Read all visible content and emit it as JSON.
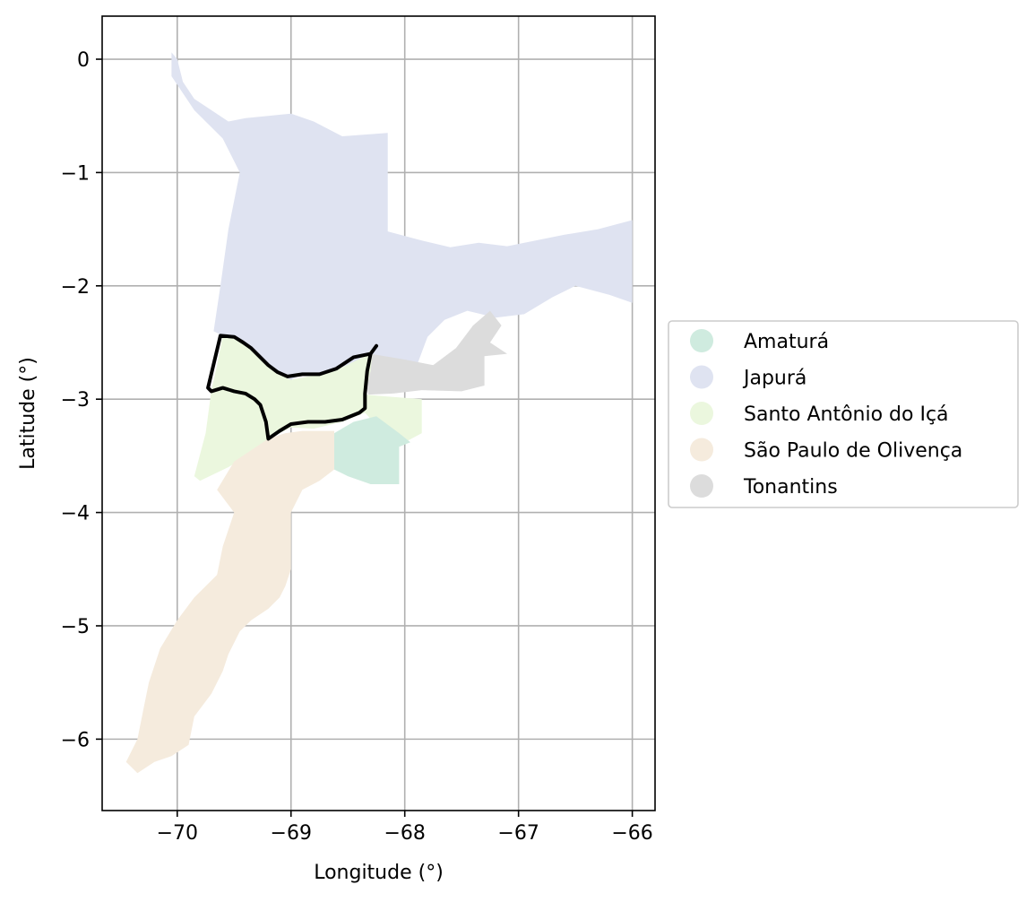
{
  "chart_data": {
    "type": "choropleth-map",
    "xlabel": "Longitude (°)",
    "ylabel": "Latitude (°)",
    "xlim": [
      -70.66,
      -65.8
    ],
    "ylim": [
      -6.63,
      0.38
    ],
    "x_ticks": [
      -70,
      -69,
      -68,
      -67,
      -66
    ],
    "y_ticks": [
      0,
      -1,
      -2,
      -3,
      -4,
      -5,
      -6
    ],
    "x_tick_labels": [
      "−70",
      "−69",
      "−68",
      "−67",
      "−66"
    ],
    "y_tick_labels": [
      "0",
      "−1",
      "−2",
      "−3",
      "−4",
      "−5",
      "−6"
    ],
    "grid": true,
    "legend_position": "center-right outside",
    "highlighted_region": "Santo Antônio do Içá",
    "regions": [
      {
        "name": "Japurá",
        "color": "#dfe3f1",
        "polygon": [
          [
            -70.05,
            0.06
          ],
          [
            -70.0,
            0.0
          ],
          [
            -69.95,
            -0.2
          ],
          [
            -69.85,
            -0.35
          ],
          [
            -69.7,
            -0.45
          ],
          [
            -69.55,
            -0.55
          ],
          [
            -69.4,
            -0.52
          ],
          [
            -69.2,
            -0.5
          ],
          [
            -69.0,
            -0.48
          ],
          [
            -68.8,
            -0.55
          ],
          [
            -68.55,
            -0.68
          ],
          [
            -68.15,
            -0.65
          ],
          [
            -68.15,
            -1.52
          ],
          [
            -67.85,
            -1.6
          ],
          [
            -67.6,
            -1.66
          ],
          [
            -67.35,
            -1.62
          ],
          [
            -67.1,
            -1.65
          ],
          [
            -66.85,
            -1.6
          ],
          [
            -66.6,
            -1.55
          ],
          [
            -66.3,
            -1.5
          ],
          [
            -66.0,
            -1.42
          ],
          [
            -66.0,
            -2.15
          ],
          [
            -66.2,
            -2.08
          ],
          [
            -66.5,
            -2.0
          ],
          [
            -66.7,
            -2.1
          ],
          [
            -66.95,
            -2.25
          ],
          [
            -67.2,
            -2.28
          ],
          [
            -67.45,
            -2.22
          ],
          [
            -67.65,
            -2.3
          ],
          [
            -67.8,
            -2.45
          ],
          [
            -67.9,
            -2.72
          ],
          [
            -68.12,
            -2.72
          ],
          [
            -68.3,
            -2.62
          ],
          [
            -68.42,
            -2.68
          ],
          [
            -68.58,
            -2.72
          ],
          [
            -68.75,
            -2.78
          ],
          [
            -68.9,
            -2.78
          ],
          [
            -69.0,
            -2.83
          ],
          [
            -69.1,
            -2.78
          ],
          [
            -69.2,
            -2.72
          ],
          [
            -69.3,
            -2.58
          ],
          [
            -69.45,
            -2.47
          ],
          [
            -69.6,
            -2.44
          ],
          [
            -69.68,
            -2.4
          ],
          [
            -69.62,
            -2.0
          ],
          [
            -69.55,
            -1.5
          ],
          [
            -69.45,
            -1.0
          ],
          [
            -69.6,
            -0.7
          ],
          [
            -69.85,
            -0.45
          ],
          [
            -70.05,
            -0.15
          ]
        ]
      },
      {
        "name": "Tonantins",
        "color": "#dcdcdc",
        "polygon": [
          [
            -68.3,
            -2.6
          ],
          [
            -68.0,
            -2.65
          ],
          [
            -67.75,
            -2.7
          ],
          [
            -67.55,
            -2.55
          ],
          [
            -67.4,
            -2.35
          ],
          [
            -67.25,
            -2.22
          ],
          [
            -67.15,
            -2.35
          ],
          [
            -67.25,
            -2.5
          ],
          [
            -67.1,
            -2.6
          ],
          [
            -67.3,
            -2.62
          ],
          [
            -67.3,
            -2.88
          ],
          [
            -67.5,
            -2.93
          ],
          [
            -67.85,
            -2.92
          ],
          [
            -68.1,
            -2.95
          ],
          [
            -68.32,
            -2.96
          ],
          [
            -68.35,
            -2.8
          ]
        ]
      },
      {
        "name": "Santo Antônio do Içá",
        "color": "#ebf7de",
        "polygon": [
          [
            -69.6,
            -2.44
          ],
          [
            -69.45,
            -2.47
          ],
          [
            -69.3,
            -2.58
          ],
          [
            -69.2,
            -2.72
          ],
          [
            -69.1,
            -2.78
          ],
          [
            -69.0,
            -2.83
          ],
          [
            -68.85,
            -2.8
          ],
          [
            -68.7,
            -2.78
          ],
          [
            -68.55,
            -2.72
          ],
          [
            -68.35,
            -2.62
          ],
          [
            -68.28,
            -2.55
          ],
          [
            -68.3,
            -2.75
          ],
          [
            -68.35,
            -2.96
          ],
          [
            -68.1,
            -2.98
          ],
          [
            -67.85,
            -3.0
          ],
          [
            -67.85,
            -3.3
          ],
          [
            -68.0,
            -3.38
          ],
          [
            -68.1,
            -3.35
          ],
          [
            -68.2,
            -3.28
          ],
          [
            -68.35,
            -3.12
          ],
          [
            -68.55,
            -3.2
          ],
          [
            -68.8,
            -3.26
          ],
          [
            -69.0,
            -3.25
          ],
          [
            -69.1,
            -3.3
          ],
          [
            -69.2,
            -3.35
          ],
          [
            -69.3,
            -3.45
          ],
          [
            -69.55,
            -3.6
          ],
          [
            -69.8,
            -3.72
          ],
          [
            -69.85,
            -3.68
          ],
          [
            -69.75,
            -3.3
          ],
          [
            -69.7,
            -2.92
          ],
          [
            -69.65,
            -2.7
          ]
        ]
      },
      {
        "name": "Amaturá",
        "color": "#cfebdf",
        "polygon": [
          [
            -68.62,
            -3.3
          ],
          [
            -68.62,
            -3.62
          ],
          [
            -68.5,
            -3.68
          ],
          [
            -68.3,
            -3.75
          ],
          [
            -68.05,
            -3.75
          ],
          [
            -68.05,
            -3.6
          ],
          [
            -68.05,
            -3.42
          ],
          [
            -67.95,
            -3.38
          ],
          [
            -68.05,
            -3.3
          ],
          [
            -68.25,
            -3.15
          ],
          [
            -68.45,
            -3.2
          ]
        ]
      },
      {
        "name": "São Paulo de Olivença",
        "color": "#f5ebdd",
        "polygon": [
          [
            -69.2,
            -3.35
          ],
          [
            -69.05,
            -3.3
          ],
          [
            -68.9,
            -3.28
          ],
          [
            -68.62,
            -3.28
          ],
          [
            -68.62,
            -3.62
          ],
          [
            -68.75,
            -3.72
          ],
          [
            -68.9,
            -3.8
          ],
          [
            -69.0,
            -4.0
          ],
          [
            -69.0,
            -4.3
          ],
          [
            -69.0,
            -4.5
          ],
          [
            -69.05,
            -4.65
          ],
          [
            -69.1,
            -4.75
          ],
          [
            -69.2,
            -4.85
          ],
          [
            -69.35,
            -4.95
          ],
          [
            -69.45,
            -5.05
          ],
          [
            -69.55,
            -5.25
          ],
          [
            -69.6,
            -5.4
          ],
          [
            -69.7,
            -5.6
          ],
          [
            -69.85,
            -5.8
          ],
          [
            -69.9,
            -6.05
          ],
          [
            -70.05,
            -6.15
          ],
          [
            -70.2,
            -6.2
          ],
          [
            -70.35,
            -6.3
          ],
          [
            -70.45,
            -6.2
          ],
          [
            -70.35,
            -6.0
          ],
          [
            -70.3,
            -5.75
          ],
          [
            -70.25,
            -5.5
          ],
          [
            -70.15,
            -5.2
          ],
          [
            -70.0,
            -4.95
          ],
          [
            -69.85,
            -4.75
          ],
          [
            -69.65,
            -4.55
          ],
          [
            -69.6,
            -4.3
          ],
          [
            -69.5,
            -4.0
          ],
          [
            -69.65,
            -3.8
          ],
          [
            -69.5,
            -3.55
          ],
          [
            -69.35,
            -3.45
          ]
        ]
      }
    ],
    "highlight_outline": [
      [
        -69.62,
        -2.44
      ],
      [
        -69.5,
        -2.45
      ],
      [
        -69.42,
        -2.5
      ],
      [
        -69.35,
        -2.55
      ],
      [
        -69.28,
        -2.62
      ],
      [
        -69.2,
        -2.7
      ],
      [
        -69.12,
        -2.76
      ],
      [
        -69.03,
        -2.8
      ],
      [
        -68.9,
        -2.78
      ],
      [
        -68.75,
        -2.78
      ],
      [
        -68.6,
        -2.73
      ],
      [
        -68.45,
        -2.63
      ],
      [
        -68.3,
        -2.6
      ],
      [
        -68.25,
        -2.53
      ],
      [
        -68.3,
        -2.6
      ],
      [
        -68.33,
        -2.75
      ],
      [
        -68.35,
        -2.95
      ],
      [
        -68.35,
        -3.08
      ],
      [
        -68.4,
        -3.12
      ],
      [
        -68.55,
        -3.18
      ],
      [
        -68.7,
        -3.2
      ],
      [
        -68.85,
        -3.2
      ],
      [
        -69.0,
        -3.22
      ],
      [
        -69.1,
        -3.28
      ],
      [
        -69.2,
        -3.35
      ],
      [
        -69.22,
        -3.2
      ],
      [
        -69.27,
        -3.05
      ],
      [
        -69.32,
        -3.0
      ],
      [
        -69.4,
        -2.95
      ],
      [
        -69.5,
        -2.93
      ],
      [
        -69.6,
        -2.9
      ],
      [
        -69.7,
        -2.93
      ],
      [
        -69.73,
        -2.9
      ]
    ],
    "legend": [
      {
        "label": "Amaturá",
        "color": "#cfebdf"
      },
      {
        "label": "Japurá",
        "color": "#dfe3f1"
      },
      {
        "label": "Santo Antônio do Içá",
        "color": "#ebf7de"
      },
      {
        "label": "São Paulo de Olivença",
        "color": "#f5ebdd"
      },
      {
        "label": "Tonantins",
        "color": "#dcdcdc"
      }
    ]
  }
}
